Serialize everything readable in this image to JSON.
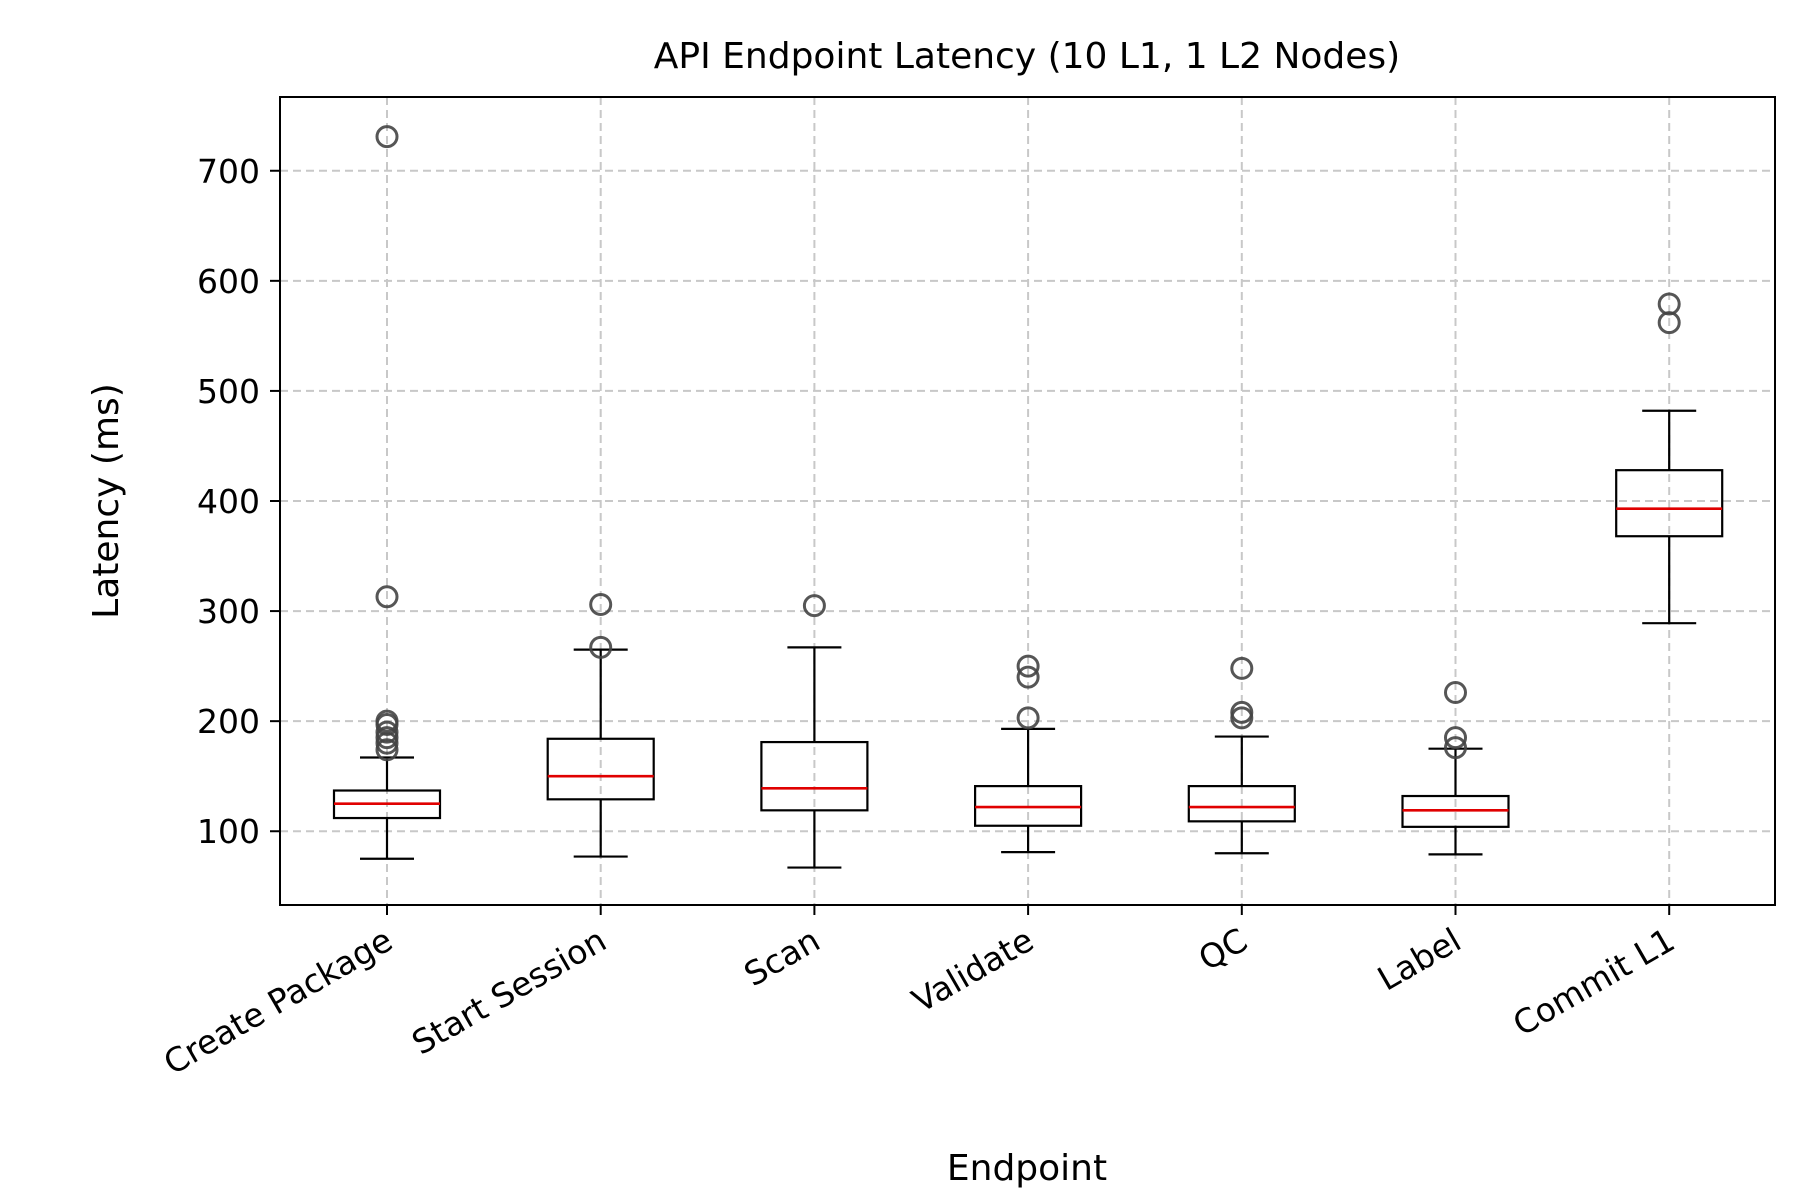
{
  "chart_data": {
    "type": "box",
    "title": "API Endpoint Latency (10 L1, 1 L2 Nodes)",
    "xlabel": "Endpoint",
    "ylabel": "Latency (ms)",
    "ylim": [
      33,
      767
    ],
    "yticks": [
      100,
      200,
      300,
      400,
      500,
      600,
      700
    ],
    "grid": true,
    "colors": {
      "median": "#e00000",
      "box": "#000000",
      "flier": "#444444",
      "grid": "#c8c8c8"
    },
    "categories": [
      "Create Package",
      "Start Session",
      "Scan",
      "Validate",
      "QC",
      "Label",
      "Commit L1"
    ],
    "series": [
      {
        "name": "Create Package",
        "whisker_low": 75,
        "q1": 112,
        "median": 125,
        "q3": 137,
        "whisker_high": 167,
        "outliers": [
          174,
          180,
          185,
          190,
          197,
          200,
          313,
          731
        ]
      },
      {
        "name": "Start Session",
        "whisker_low": 77,
        "q1": 129,
        "median": 150,
        "q3": 184,
        "whisker_high": 265,
        "outliers": [
          267,
          306
        ]
      },
      {
        "name": "Scan",
        "whisker_low": 67,
        "q1": 119,
        "median": 139,
        "q3": 181,
        "whisker_high": 267,
        "outliers": [
          305
        ]
      },
      {
        "name": "Validate",
        "whisker_low": 81,
        "q1": 105,
        "median": 122,
        "q3": 141,
        "whisker_high": 193,
        "outliers": [
          203,
          240,
          250
        ]
      },
      {
        "name": "QC",
        "whisker_low": 80,
        "q1": 109,
        "median": 122,
        "q3": 141,
        "whisker_high": 186,
        "outliers": [
          203,
          208,
          248
        ]
      },
      {
        "name": "Label",
        "whisker_low": 79,
        "q1": 104,
        "median": 119,
        "q3": 132,
        "whisker_high": 175,
        "outliers": [
          176,
          185,
          226
        ]
      },
      {
        "name": "Commit L1",
        "whisker_low": 289,
        "q1": 368,
        "median": 393,
        "q3": 428,
        "whisker_high": 482,
        "outliers": [
          562,
          579
        ]
      }
    ]
  }
}
